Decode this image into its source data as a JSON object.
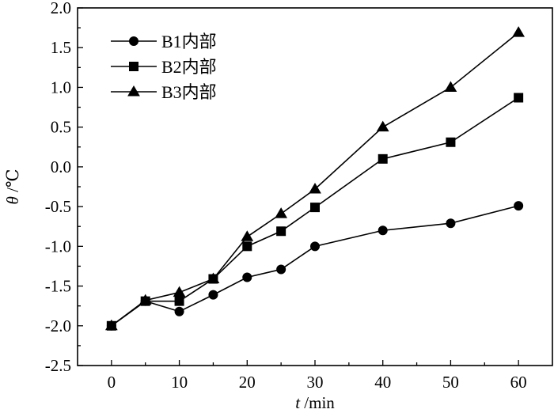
{
  "chart_data": {
    "type": "line",
    "xlabel": "t /min",
    "ylabel": "θ /℃",
    "xlim": [
      -5,
      65
    ],
    "ylim": [
      -2.5,
      2.0
    ],
    "x_ticks": [
      0,
      10,
      20,
      30,
      40,
      50,
      60
    ],
    "y_ticks": [
      -2.5,
      -2.0,
      -1.5,
      -1.0,
      -0.5,
      0.0,
      0.5,
      1.0,
      1.5,
      2.0
    ],
    "legend_position": "top-left",
    "x": [
      0,
      5,
      10,
      15,
      20,
      25,
      30,
      40,
      50,
      60
    ],
    "series": [
      {
        "name": "B1内部",
        "marker": "circle",
        "values": [
          -2.0,
          -1.69,
          -1.82,
          -1.61,
          -1.39,
          -1.29,
          -1.0,
          -0.8,
          -0.71,
          -0.49
        ]
      },
      {
        "name": "B2内部",
        "marker": "square",
        "values": [
          -2.0,
          -1.69,
          -1.69,
          -1.41,
          -1.0,
          -0.81,
          -0.51,
          0.1,
          0.31,
          0.87
        ]
      },
      {
        "name": "B3内部",
        "marker": "triangle",
        "values": [
          -2.0,
          -1.68,
          -1.58,
          -1.41,
          -0.88,
          -0.59,
          -0.28,
          0.5,
          1.0,
          1.69
        ]
      }
    ]
  }
}
